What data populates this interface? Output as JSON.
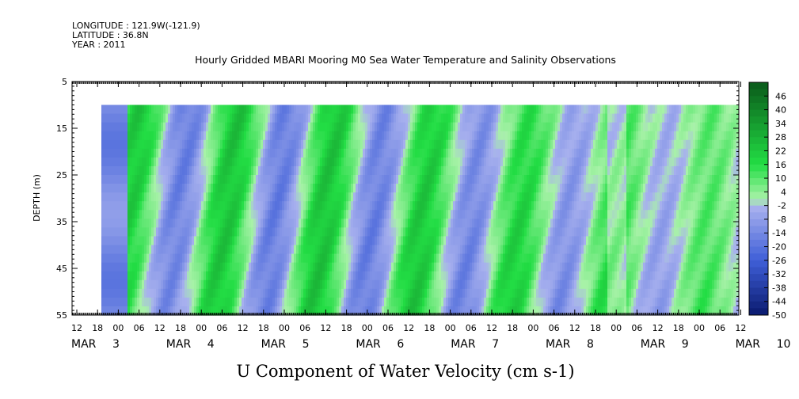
{
  "header": {
    "longitude": "LONGITUDE : 121.9W(-121.9)",
    "latitude": "LATITUDE : 36.8N",
    "year": "YEAR : 2011"
  },
  "chart_data": {
    "type": "heatmap",
    "title": "Hourly Gridded MBARI Mooring M0 Sea Water Temperature and Salinity Observations",
    "xlabel": "U Component of Water Velocity (cm s-1)",
    "ylabel": "DEPTH (m)",
    "y_ticks": [
      "5",
      "15",
      "25",
      "35",
      "45",
      "55"
    ],
    "ylim": [
      5,
      55
    ],
    "data_depth_range": [
      10,
      55
    ],
    "hour_ticks": [
      "12",
      "18",
      "00",
      "06",
      "12",
      "18",
      "00",
      "06",
      "12",
      "18",
      "00",
      "06",
      "12",
      "18",
      "00",
      "06",
      "12",
      "18",
      "00",
      "06",
      "12",
      "18",
      "00",
      "06",
      "12",
      "18",
      "00",
      "06",
      "12",
      "18",
      "00",
      "06",
      "12"
    ],
    "day_labels": [
      {
        "month": "MAR",
        "day": "3"
      },
      {
        "month": "MAR",
        "day": "4"
      },
      {
        "month": "MAR",
        "day": "5"
      },
      {
        "month": "MAR",
        "day": "6"
      },
      {
        "month": "MAR",
        "day": "7"
      },
      {
        "month": "MAR",
        "day": "8"
      },
      {
        "month": "MAR",
        "day": "9"
      },
      {
        "month": "MAR",
        "day": "10"
      }
    ],
    "colorbar_labels": [
      "46",
      "40",
      "34",
      "28",
      "22",
      "16",
      "10",
      "4",
      "-2",
      "-8",
      "-14",
      "-20",
      "-26",
      "-32",
      "-38",
      "-44",
      "-50"
    ],
    "colorbar_range": [
      -50,
      52
    ],
    "colors": {
      "strong_negative": "#0a1a6e",
      "negative": "#3f5fd8",
      "weak_negative": "#a7b0ee",
      "weak_positive": "#a8f2a8",
      "positive": "#22dd44",
      "strong_positive": "#0a5a1a"
    }
  }
}
